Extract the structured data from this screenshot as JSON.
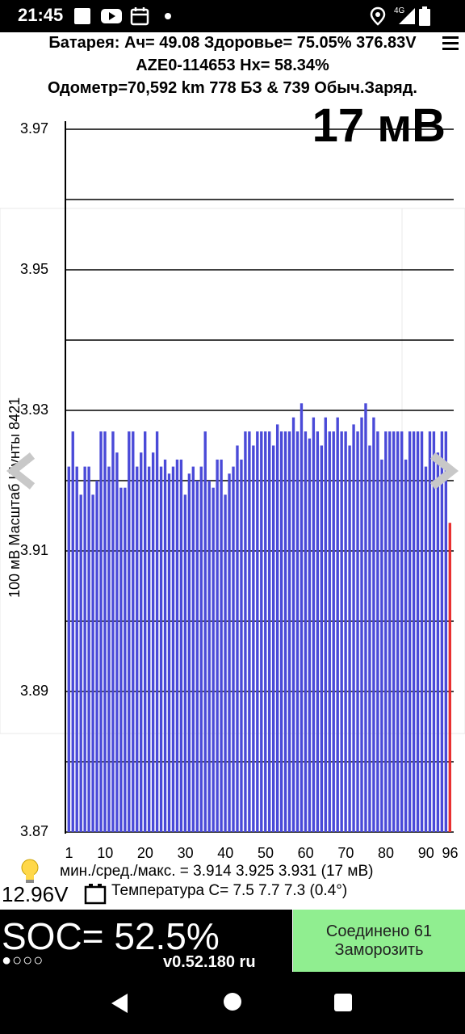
{
  "status_bar": {
    "time": "21:45",
    "network": "4G",
    "icons": [
      "square-icon",
      "youtube-icon",
      "calendar-icon",
      "dot-icon",
      "location-icon",
      "signal-icon",
      "battery-icon"
    ]
  },
  "header": {
    "line1": "Батарея: Ач= 49.08 Здоровье= 75.05% 376.83V",
    "line2": "AZE0-114653   Hx= 58.34%",
    "line3": "Одометр=70,592 km 778 БЗ & 739 Обыч.Заряд."
  },
  "spread_label": "17 мВ",
  "y_axis_title": "100 мВ Масштаб   Шунты 8421",
  "stats": "мин./сред./макс. = 3.914 3.925 3.931  (17 мВ)",
  "temperature": "Температура C= 7.5  7.7  7.3  (0.4°)",
  "voltage_12v": "12.96V",
  "soc": "SOC= 52.5%",
  "indicator_dots": "●○○○",
  "version": "v0.52.180 ru",
  "connect_button": {
    "line1": "Соединено 61",
    "line2": "Заморозить"
  },
  "colors": {
    "bar": "#4a4ad8",
    "last_bar": "#e83030",
    "grid": "#000000",
    "button_bg": "#90ee90"
  },
  "chart_data": {
    "type": "bar",
    "title": "",
    "xlabel": "",
    "ylabel": "100 мВ Масштаб   Шунты 8421",
    "ylim": [
      3.87,
      3.97
    ],
    "y_ticks": [
      "3.97",
      "3.95",
      "3.93",
      "3.91",
      "3.89",
      "3.87"
    ],
    "x_ticks": [
      "1",
      "10",
      "20",
      "30",
      "40",
      "50",
      "60",
      "70",
      "80",
      "90",
      "96"
    ],
    "grid": true,
    "values": [
      3.922,
      3.927,
      3.922,
      3.918,
      3.922,
      3.922,
      3.918,
      3.92,
      3.927,
      3.927,
      3.922,
      3.927,
      3.924,
      3.919,
      3.919,
      3.927,
      3.927,
      3.922,
      3.924,
      3.927,
      3.922,
      3.924,
      3.927,
      3.922,
      3.923,
      3.921,
      3.922,
      3.923,
      3.923,
      3.918,
      3.921,
      3.922,
      3.92,
      3.922,
      3.927,
      3.92,
      3.919,
      3.923,
      3.923,
      3.918,
      3.921,
      3.922,
      3.925,
      3.923,
      3.927,
      3.927,
      3.925,
      3.927,
      3.927,
      3.927,
      3.927,
      3.925,
      3.928,
      3.927,
      3.927,
      3.927,
      3.929,
      3.927,
      3.931,
      3.927,
      3.926,
      3.929,
      3.927,
      3.925,
      3.929,
      3.927,
      3.927,
      3.929,
      3.927,
      3.927,
      3.925,
      3.928,
      3.927,
      3.929,
      3.931,
      3.925,
      3.929,
      3.927,
      3.923,
      3.927,
      3.927,
      3.927,
      3.927,
      3.927,
      3.923,
      3.927,
      3.927,
      3.927,
      3.927,
      3.922,
      3.927,
      3.927,
      3.924,
      3.927,
      3.927,
      3.914
    ]
  }
}
